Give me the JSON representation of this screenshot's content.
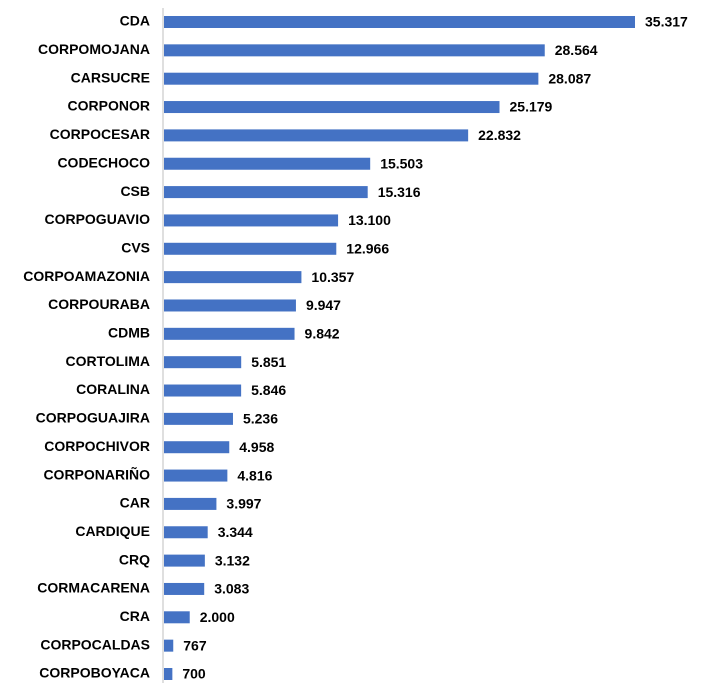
{
  "chart_data": {
    "type": "bar",
    "orientation": "horizontal",
    "color": "#4472c4",
    "categories": [
      "CDA",
      "CORPOMOJANA",
      "CARSUCRE",
      "CORPONOR",
      "CORPOCESAR",
      "CODECHOCO",
      "CSB",
      "CORPOGUAVIO",
      "CVS",
      "CORPOAMAZONIA",
      "CORPOURABA",
      "CDMB",
      "CORTOLIMA",
      "CORALINA",
      "CORPOGUAJIRA",
      "CORPOCHIVOR",
      "CORPONARIÑO",
      "CAR",
      "CARDIQUE",
      "CRQ",
      "CORMACARENA",
      "CRA",
      "CORPOCALDAS",
      "CORPOBOYACA"
    ],
    "values": [
      35317,
      28564,
      28087,
      25179,
      22832,
      15503,
      15316,
      13100,
      12966,
      10357,
      9947,
      9842,
      5851,
      5846,
      5236,
      4958,
      4816,
      3997,
      3344,
      3132,
      3083,
      2000,
      767,
      700
    ],
    "value_labels": [
      "35.317",
      "28.564",
      "28.087",
      "25.179",
      "22.832",
      "15.503",
      "15.316",
      "13.100",
      "12.966",
      "10.357",
      "9.947",
      "9.842",
      "5.851",
      "5.846",
      "5.236",
      "4.958",
      "4.816",
      "3.997",
      "3.344",
      "3.132",
      "3.083",
      "2.000",
      "767",
      "700"
    ]
  }
}
